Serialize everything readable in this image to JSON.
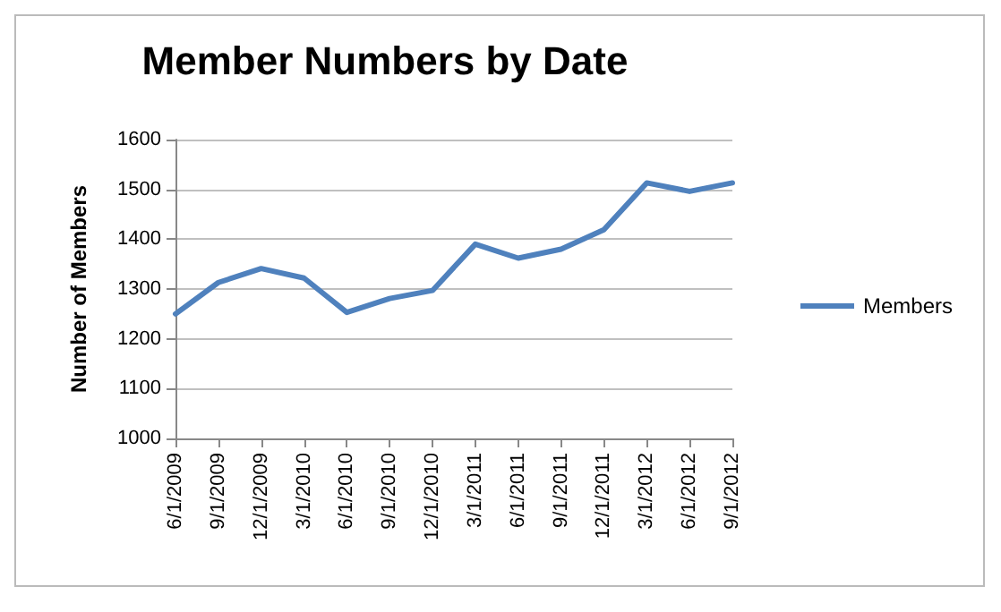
{
  "chart_data": {
    "type": "line",
    "title": "Member Numbers by Date",
    "ylabel": "Number of Members",
    "categories": [
      "6/1/2009",
      "9/1/2009",
      "12/1/2009",
      "3/1/2010",
      "6/1/2010",
      "9/1/2010",
      "12/1/2010",
      "3/1/2011",
      "6/1/2011",
      "9/1/2011",
      "12/1/2011",
      "3/1/2012",
      "6/1/2012",
      "9/1/2012"
    ],
    "series": [
      {
        "name": "Members",
        "color": "#4f81bd",
        "values": [
          1250,
          1313,
          1341,
          1322,
          1253,
          1281,
          1297,
          1390,
          1362,
          1380,
          1419,
          1513,
          1496,
          1513
        ]
      }
    ],
    "ylim": [
      1000,
      1600
    ],
    "yticks": [
      1000,
      1100,
      1200,
      1300,
      1400,
      1500,
      1600
    ],
    "grid": "y",
    "legend": "right",
    "marker": "none"
  }
}
